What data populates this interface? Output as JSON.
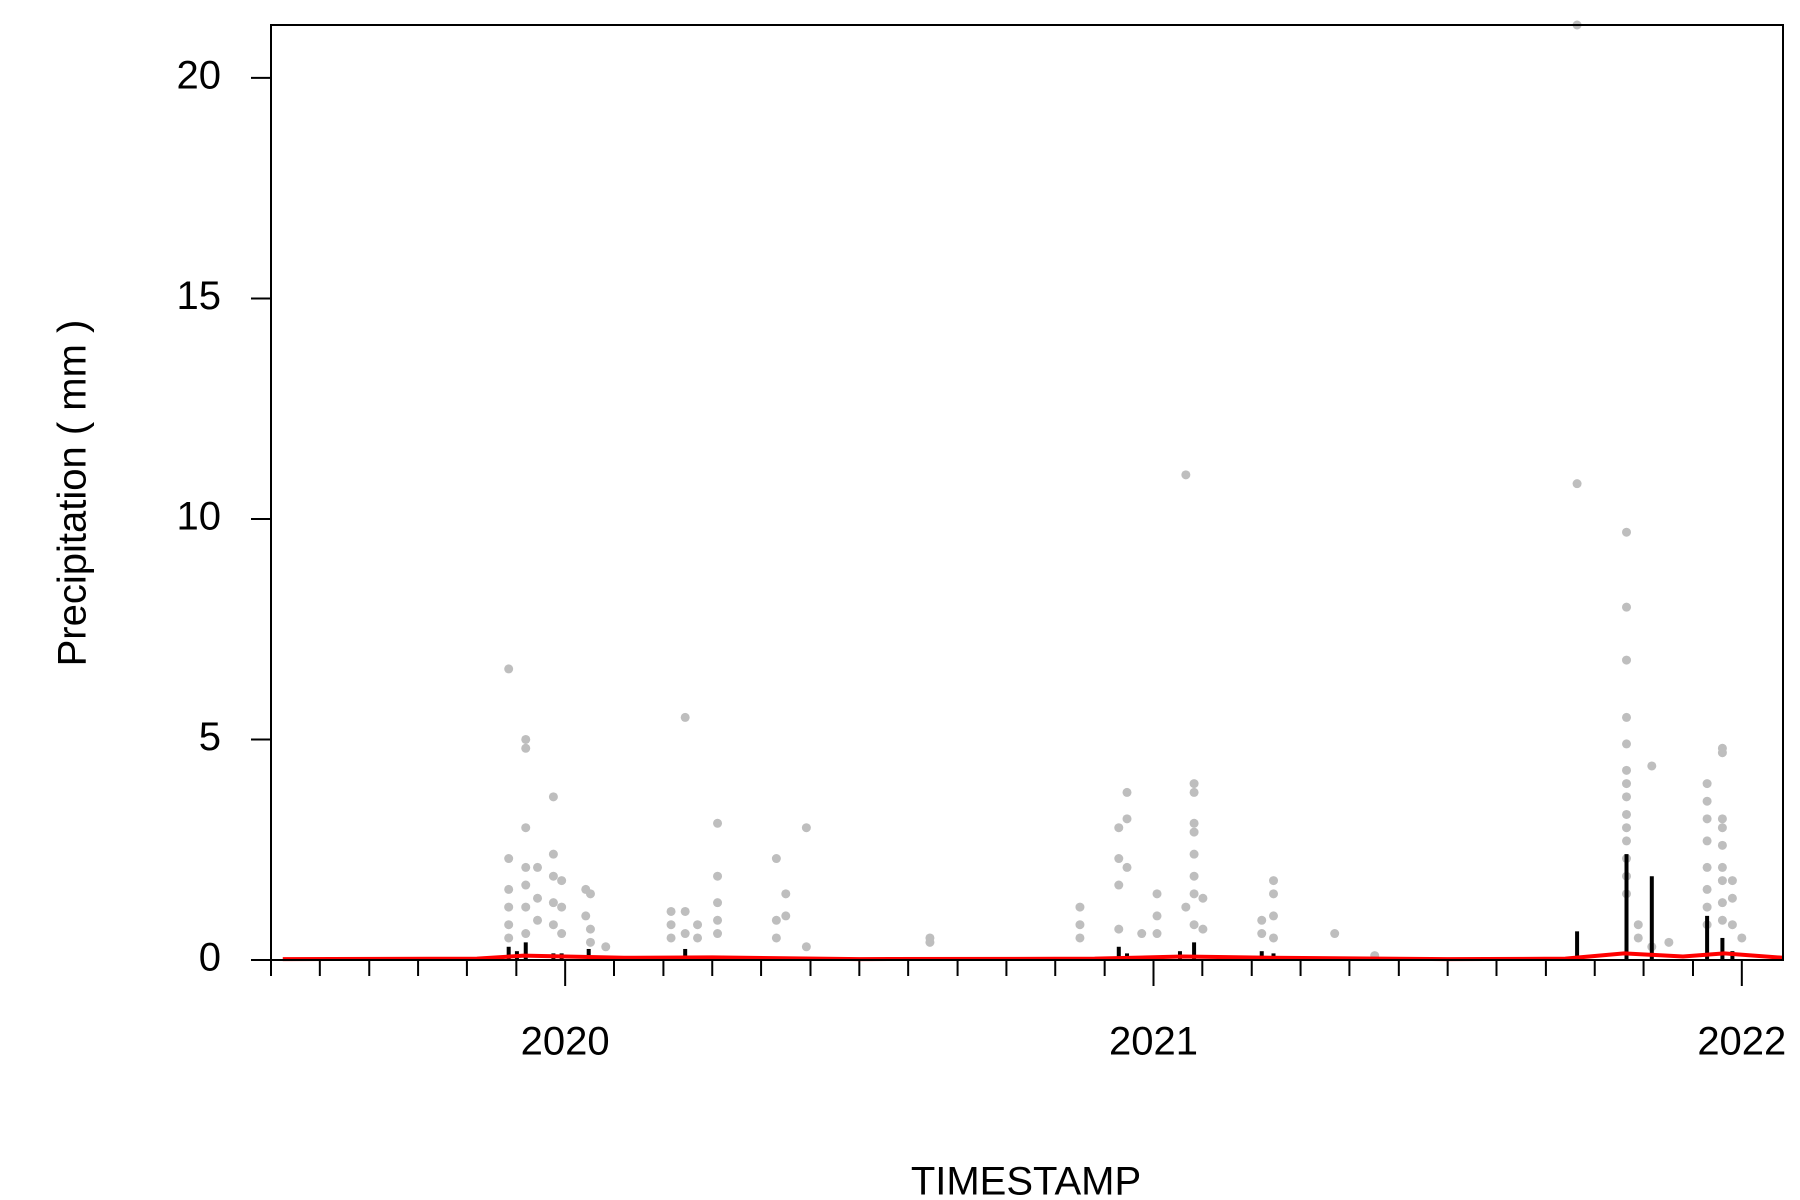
{
  "chart_data": {
    "type": "scatter",
    "x_label": "TIMESTAMP",
    "y_label": "Precipitation ( mm )",
    "xlim": [
      2019.5,
      2022.07
    ],
    "xticks": [
      2020,
      2021,
      2022
    ],
    "xminorticks": [
      2019.5,
      2019.583,
      2019.667,
      2019.75,
      2019.833,
      2019.917,
      2020.083,
      2020.167,
      2020.25,
      2020.333,
      2020.417,
      2020.5,
      2020.583,
      2020.667,
      2020.75,
      2020.833,
      2020.917,
      2021.083,
      2021.167,
      2021.25,
      2021.333,
      2021.417,
      2021.5,
      2021.583,
      2021.667,
      2021.75,
      2021.833,
      2021.917
    ],
    "ylim": [
      0,
      21.2
    ],
    "yticks": [
      0,
      5,
      10,
      15,
      20
    ],
    "series": [
      {
        "style": "points",
        "color": "#bebebe",
        "x": [
          2019.904,
          2019.904,
          2019.904,
          2019.904,
          2019.904,
          2019.904,
          2019.933,
          2019.933,
          2019.933,
          2019.933,
          2019.933,
          2019.933,
          2019.933,
          2019.953,
          2019.953,
          2019.953,
          2019.98,
          2019.98,
          2019.98,
          2019.98,
          2019.98,
          2019.994,
          2019.994,
          2019.994,
          2020.035,
          2020.035,
          2020.043,
          2020.043,
          2020.043,
          2020.069,
          2020.18,
          2020.18,
          2020.18,
          2020.204,
          2020.204,
          2020.204,
          2020.225,
          2020.225,
          2020.259,
          2020.259,
          2020.259,
          2020.259,
          2020.259,
          2020.359,
          2020.359,
          2020.359,
          2020.375,
          2020.375,
          2020.41,
          2020.41,
          2020.62,
          2020.62,
          2020.875,
          2020.875,
          2020.875,
          2020.941,
          2020.941,
          2020.941,
          2020.941,
          2020.955,
          2020.955,
          2020.955,
          2020.98,
          2021.006,
          2021.006,
          2021.006,
          2021.055,
          2021.055,
          2021.069,
          2021.069,
          2021.069,
          2021.069,
          2021.069,
          2021.069,
          2021.069,
          2021.069,
          2021.084,
          2021.084,
          2021.184,
          2021.184,
          2021.204,
          2021.204,
          2021.204,
          2021.204,
          2021.308,
          2021.376,
          2021.72,
          2021.72,
          2021.804,
          2021.804,
          2021.804,
          2021.804,
          2021.804,
          2021.804,
          2021.804,
          2021.804,
          2021.804,
          2021.804,
          2021.804,
          2021.804,
          2021.804,
          2021.804,
          2021.824,
          2021.824,
          2021.847,
          2021.847,
          2021.876,
          2021.941,
          2021.941,
          2021.941,
          2021.941,
          2021.941,
          2021.941,
          2021.941,
          2021.941,
          2021.967,
          2021.967,
          2021.967,
          2021.967,
          2021.967,
          2021.967,
          2021.967,
          2021.967,
          2021.967,
          2021.984,
          2021.984,
          2021.984,
          2022.0
        ],
        "values": [
          6.6,
          2.3,
          1.6,
          1.2,
          0.8,
          0.5,
          5.0,
          4.8,
          3.0,
          2.1,
          1.7,
          1.2,
          0.6,
          2.1,
          1.4,
          0.9,
          3.7,
          2.4,
          1.9,
          1.3,
          0.8,
          1.8,
          1.2,
          0.6,
          1.6,
          1.0,
          1.5,
          0.7,
          0.4,
          0.3,
          1.1,
          0.8,
          0.5,
          5.5,
          1.1,
          0.6,
          0.8,
          0.5,
          3.1,
          1.9,
          1.3,
          0.9,
          0.6,
          2.3,
          0.9,
          0.5,
          1.5,
          1.0,
          3.0,
          0.3,
          0.5,
          0.4,
          1.2,
          0.8,
          0.5,
          3.0,
          2.3,
          1.7,
          0.7,
          3.8,
          3.2,
          2.1,
          0.6,
          1.5,
          1.0,
          0.6,
          11.0,
          1.2,
          4.0,
          3.8,
          3.1,
          2.9,
          2.4,
          1.9,
          1.5,
          0.8,
          1.4,
          0.7,
          0.9,
          0.6,
          1.8,
          1.5,
          1.0,
          0.5,
          0.6,
          0.1,
          21.2,
          10.8,
          9.7,
          8.0,
          6.8,
          5.5,
          4.9,
          4.3,
          4.0,
          3.7,
          3.3,
          3.0,
          2.7,
          2.3,
          1.9,
          1.5,
          0.8,
          0.5,
          4.4,
          0.3,
          0.4,
          4.0,
          3.6,
          3.2,
          2.7,
          2.1,
          1.6,
          1.2,
          0.8,
          4.8,
          4.7,
          3.2,
          3.0,
          2.6,
          2.1,
          1.8,
          1.3,
          0.9,
          1.8,
          1.4,
          0.8,
          0.5
        ]
      },
      {
        "style": "h",
        "color": "#000000",
        "x": [
          2019.904,
          2019.918,
          2019.933,
          2019.98,
          2019.994,
          2020.04,
          2020.204,
          2020.259,
          2020.941,
          2020.955,
          2021.045,
          2021.069,
          2021.184,
          2021.204,
          2021.72,
          2021.804,
          2021.847,
          2021.941,
          2021.967,
          2021.984
        ],
        "values": [
          0.3,
          0.2,
          0.4,
          0.15,
          0.15,
          0.25,
          0.25,
          0.1,
          0.3,
          0.15,
          0.2,
          0.4,
          0.2,
          0.15,
          0.65,
          2.4,
          1.9,
          1.0,
          0.5,
          0.2
        ]
      },
      {
        "style": "line",
        "color": "#ff0000",
        "x": [
          2019.52,
          2019.85,
          2019.93,
          2020.0,
          2020.1,
          2020.25,
          2020.5,
          2020.9,
          2021.05,
          2021.2,
          2021.5,
          2021.7,
          2021.8,
          2021.9,
          2021.97,
          2022.07
        ],
        "values": [
          0.02,
          0.03,
          0.1,
          0.08,
          0.05,
          0.06,
          0.02,
          0.03,
          0.08,
          0.05,
          0.02,
          0.03,
          0.15,
          0.08,
          0.15,
          0.05
        ]
      }
    ]
  }
}
